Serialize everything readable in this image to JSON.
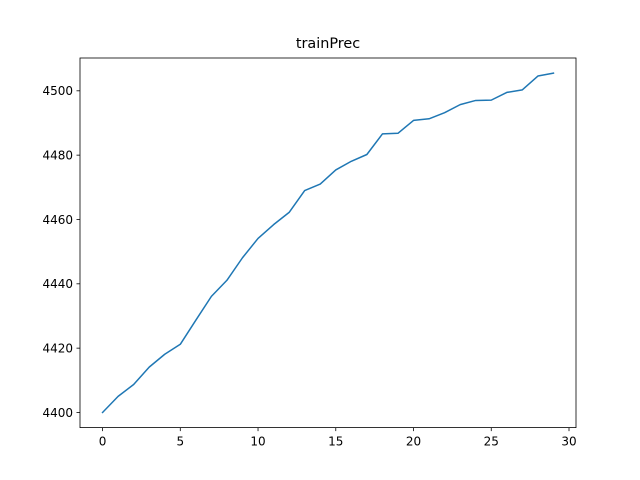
{
  "chart_data": {
    "type": "line",
    "title": "trainPrec",
    "xlabel": "",
    "ylabel": "",
    "xlim": [
      -1.45,
      30.45
    ],
    "ylim": [
      4395.3,
      4510.2
    ],
    "xticks": [
      0,
      5,
      10,
      15,
      20,
      25,
      30
    ],
    "yticks": [
      4400,
      4420,
      4440,
      4460,
      4480,
      4500
    ],
    "grid": false,
    "legend": "none",
    "series": [
      {
        "color": "#1f77b4",
        "x": [
          0,
          1,
          2,
          3,
          4,
          5,
          6,
          7,
          8,
          9,
          10,
          11,
          12,
          13,
          14,
          15,
          16,
          17,
          18,
          19,
          20,
          21,
          22,
          23,
          24,
          25,
          26,
          27,
          28,
          29
        ],
        "y": [
          4400.0,
          4405.0,
          4408.7,
          4414.1,
          4418.1,
          4421.2,
          4428.7,
          4436.1,
          4441.1,
          4448.1,
          4454.1,
          4458.4,
          4462.2,
          4469.0,
          4471.0,
          4475.4,
          4478.1,
          4480.2,
          4486.6,
          4486.8,
          4490.8,
          4491.3,
          4493.2,
          4495.7,
          4497.0,
          4497.1,
          4499.5,
          4500.3,
          4504.6,
          4505.5
        ]
      }
    ]
  }
}
